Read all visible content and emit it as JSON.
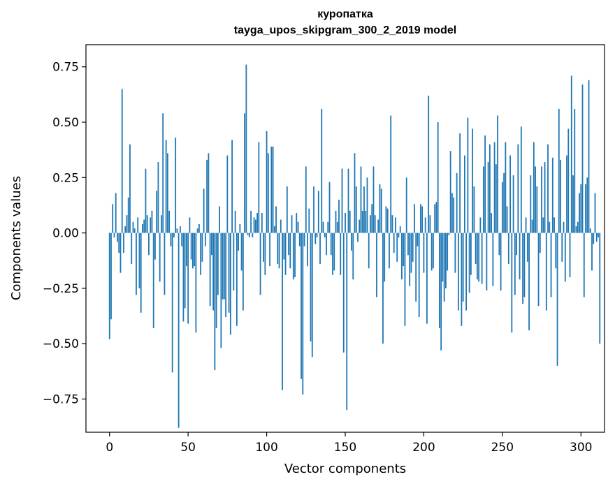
{
  "title": {
    "line1": "куропатка",
    "line2": "tayga_upos_skipgram_300_2_2019 model"
  },
  "chart_data": {
    "type": "bar",
    "title": "куропатка\ntayga_upos_skipgram_300_2_2019 model",
    "xlabel": "Vector components",
    "ylabel": "Components values",
    "xlim": [
      -15,
      315
    ],
    "ylim": [
      -0.9,
      0.85
    ],
    "xticks": [
      0,
      50,
      100,
      150,
      200,
      250,
      300
    ],
    "xtick_labels": [
      "0",
      "50",
      "100",
      "150",
      "200",
      "250",
      "300"
    ],
    "yticks": [
      -0.75,
      -0.5,
      -0.25,
      0.0,
      0.25,
      0.5,
      0.75
    ],
    "ytick_labels": [
      "−0.75",
      "−0.50",
      "−0.25",
      "0.00",
      "0.25",
      "0.50",
      "0.75"
    ],
    "grid": false,
    "bar_color": "#1f77b4",
    "x_start": 0,
    "values": [
      -0.48,
      -0.39,
      0.13,
      -0.02,
      0.18,
      -0.04,
      -0.09,
      -0.18,
      0.65,
      -0.09,
      0.03,
      0.08,
      0.16,
      0.4,
      -0.14,
      0.05,
      0.02,
      -0.28,
      0.07,
      -0.25,
      -0.36,
      0.04,
      0.06,
      0.29,
      0.08,
      -0.1,
      0.07,
      0.1,
      -0.43,
      -0.12,
      0.19,
      0.32,
      -0.22,
      0.08,
      0.54,
      -0.28,
      0.42,
      0.36,
      0.1,
      -0.06,
      -0.63,
      -0.02,
      0.43,
      0.02,
      -0.88,
      0.03,
      -0.06,
      -0.4,
      -0.34,
      -0.15,
      -0.41,
      0.07,
      -0.12,
      -0.16,
      -0.15,
      -0.45,
      0.02,
      0.04,
      -0.19,
      -0.13,
      0.2,
      -0.06,
      0.33,
      0.36,
      -0.33,
      -0.1,
      -0.35,
      -0.62,
      -0.43,
      -0.28,
      0.12,
      -0.52,
      -0.3,
      -0.3,
      -0.38,
      0.35,
      -0.36,
      -0.46,
      0.42,
      -0.26,
      0.1,
      -0.42,
      -0.08,
      0.04,
      -0.17,
      -0.35,
      0.54,
      0.76,
      -0.01,
      -0.02,
      0.1,
      -0.02,
      0.07,
      0.06,
      0.09,
      0.41,
      -0.28,
      0.09,
      -0.13,
      -0.19,
      0.46,
      0.36,
      -0.15,
      0.39,
      0.39,
      0.03,
      0.12,
      -0.14,
      -0.16,
      0.06,
      -0.71,
      -0.12,
      -0.19,
      0.21,
      -0.1,
      -0.16,
      0.08,
      -0.21,
      -0.2,
      0.09,
      0.05,
      -0.06,
      -0.66,
      -0.73,
      -0.06,
      0.3,
      -0.15,
      0.11,
      -0.49,
      -0.56,
      0.21,
      -0.05,
      -0.02,
      0.19,
      -0.14,
      0.56,
      0.05,
      -0.02,
      -0.1,
      0.05,
      0.23,
      -0.1,
      -0.19,
      -0.17,
      0.1,
      0.05,
      0.15,
      -0.19,
      0.29,
      -0.54,
      0.09,
      -0.8,
      0.29,
      0.1,
      -0.08,
      -0.21,
      0.36,
      0.21,
      -0.04,
      0.06,
      0.3,
      0.1,
      0.21,
      0.1,
      0.25,
      -0.16,
      0.08,
      0.13,
      0.3,
      0.08,
      -0.29,
      0.06,
      0.22,
      0.2,
      -0.5,
      -0.22,
      0.12,
      0.11,
      -0.16,
      0.53,
      0.08,
      -0.09,
      0.07,
      -0.13,
      -0.02,
      0.03,
      -0.21,
      -0.15,
      -0.42,
      0.25,
      -0.1,
      -0.24,
      -0.18,
      -0.13,
      0.13,
      -0.31,
      -0.06,
      -0.38,
      0.13,
      0.12,
      -0.18,
      0.07,
      -0.41,
      0.62,
      0.08,
      -0.17,
      -0.16,
      0.13,
      0.14,
      0.5,
      -0.43,
      -0.53,
      -0.22,
      -0.31,
      -0.25,
      -0.17,
      -0.01,
      0.37,
      0.18,
      0.16,
      -0.18,
      0.27,
      -0.35,
      0.45,
      -0.42,
      -0.31,
      0.35,
      -0.35,
      0.52,
      -0.27,
      -0.19,
      0.47,
      0.21,
      -0.14,
      -0.21,
      -0.22,
      0.07,
      -0.23,
      0.3,
      0.44,
      -0.26,
      0.32,
      0.4,
      0.09,
      -0.24,
      0.41,
      0.31,
      0.53,
      -0.1,
      -0.26,
      0.23,
      0.27,
      0.41,
      0.12,
      -0.14,
      0.35,
      -0.45,
      0.26,
      -0.28,
      -0.1,
      0.4,
      -0.21,
      0.48,
      -0.32,
      -0.29,
      0.07,
      -0.13,
      -0.44,
      0.26,
      0.06,
      0.41,
      0.3,
      0.21,
      -0.33,
      -0.09,
      0.3,
      0.07,
      0.32,
      -0.35,
      0.4,
      0.05,
      -0.29,
      0.34,
      0.07,
      -0.16,
      -0.6,
      0.56,
      0.33,
      -0.13,
      0.05,
      -0.22,
      0.35,
      0.47,
      -0.2,
      0.71,
      0.26,
      0.56,
      0.03,
      0.05,
      0.18,
      0.22,
      0.67,
      -0.29,
      0.22,
      0.25,
      0.69,
      0.02,
      -0.17,
      -0.05,
      0.18,
      -0.04,
      -0.02,
      -0.5
    ]
  }
}
